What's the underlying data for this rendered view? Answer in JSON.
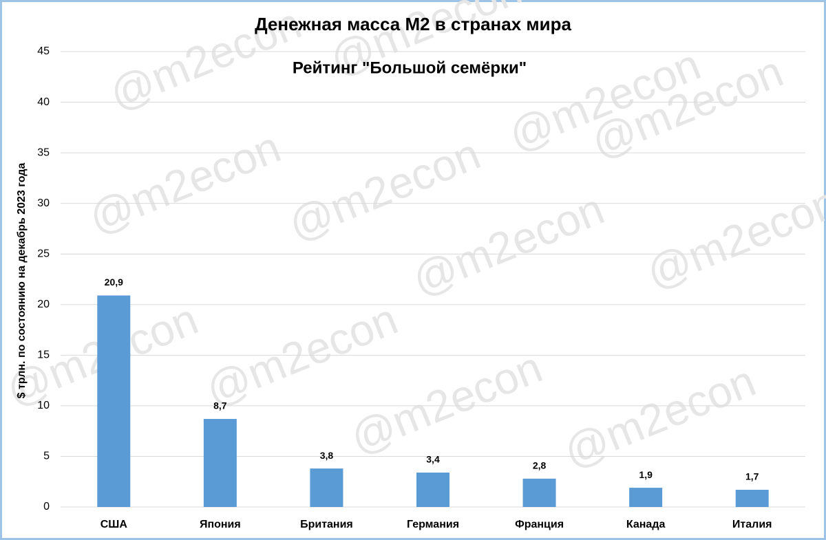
{
  "chart_data": {
    "type": "bar",
    "title": "Денежная масса М2 в странах мира",
    "subtitle": "Рейтинг \"Большой семёрки\"",
    "y_label": "$ трлн. по состоянию на декабрь 2023 года",
    "watermark": "@m2econ",
    "categories": [
      "США",
      "Япония",
      "Британия",
      "Германия",
      "Франция",
      "Канада",
      "Италия"
    ],
    "values": [
      20.9,
      8.7,
      3.8,
      3.4,
      2.8,
      1.9,
      1.7
    ],
    "value_labels": [
      "20,9",
      "8,7",
      "3,8",
      "3,4",
      "2,8",
      "1,9",
      "1,7"
    ],
    "color": "#5b9bd5",
    "ylim": [
      0,
      45
    ],
    "yticks": [
      0,
      5,
      10,
      15,
      20,
      25,
      30,
      35,
      40,
      45
    ],
    "grid": true
  }
}
